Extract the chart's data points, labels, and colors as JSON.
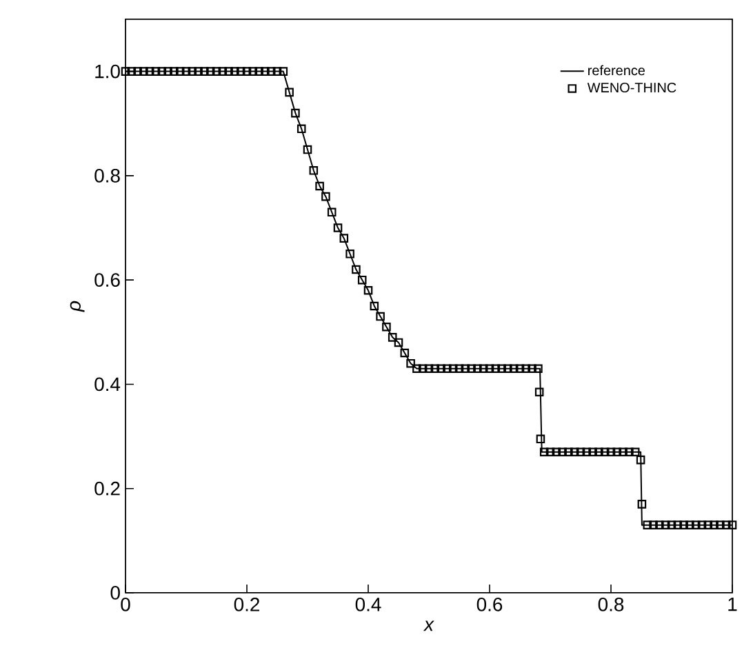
{
  "chart_data": {
    "type": "line",
    "xlabel": "x",
    "ylabel": "ρ",
    "xlim": [
      0,
      1
    ],
    "ylim": [
      0,
      1.1
    ],
    "xticks": [
      0,
      0.2,
      0.4,
      0.6,
      0.8,
      1
    ],
    "yticks": [
      0,
      {
        "value": 0.2,
        "label": "0.2"
      },
      {
        "value": 0.4,
        "label": "0.4"
      },
      {
        "value": 0.6,
        "label": "0.6"
      },
      {
        "value": 0.8,
        "label": "0.8"
      },
      {
        "value": 1,
        "label": "1.0"
      }
    ],
    "grid": false,
    "legend": "top right",
    "series": [
      {
        "name": "reference",
        "color": "#000000",
        "marker": "none",
        "line_style": "solid",
        "x": [
          0,
          0.26,
          0.27,
          0.28,
          0.29,
          0.3,
          0.31,
          0.32,
          0.33,
          0.34,
          0.35,
          0.36,
          0.37,
          0.38,
          0.39,
          0.4,
          0.41,
          0.42,
          0.43,
          0.44,
          0.45,
          0.46,
          0.47,
          0.48,
          0.485,
          0.683,
          0.686,
          0.849,
          0.851,
          1
        ],
        "values": [
          1.0,
          1.0,
          0.96,
          0.92,
          0.89,
          0.85,
          0.81,
          0.78,
          0.76,
          0.73,
          0.7,
          0.68,
          0.65,
          0.62,
          0.6,
          0.58,
          0.55,
          0.53,
          0.51,
          0.49,
          0.48,
          0.46,
          0.44,
          0.43,
          0.43,
          0.43,
          0.27,
          0.27,
          0.13,
          0.13
        ]
      },
      {
        "name": "WENO-THINC",
        "type": "scatter",
        "color": "#000000",
        "marker": "square",
        "x": [
          0,
          0.01,
          0.02,
          0.03,
          0.04,
          0.05,
          0.06,
          0.07,
          0.08,
          0.09,
          0.1,
          0.11,
          0.12,
          0.13,
          0.14,
          0.15,
          0.16,
          0.17,
          0.18,
          0.19,
          0.2,
          0.21,
          0.22,
          0.23,
          0.24,
          0.25,
          0.26,
          0.27,
          0.28,
          0.29,
          0.3,
          0.31,
          0.32,
          0.33,
          0.34,
          0.35,
          0.36,
          0.37,
          0.38,
          0.39,
          0.4,
          0.41,
          0.42,
          0.43,
          0.44,
          0.45,
          0.46,
          0.47,
          0.48,
          0.49,
          0.5,
          0.51,
          0.52,
          0.53,
          0.54,
          0.55,
          0.56,
          0.57,
          0.58,
          0.59,
          0.6,
          0.61,
          0.62,
          0.63,
          0.64,
          0.65,
          0.66,
          0.67,
          0.68,
          0.682,
          0.684,
          0.69,
          0.7,
          0.71,
          0.72,
          0.73,
          0.74,
          0.75,
          0.76,
          0.77,
          0.78,
          0.79,
          0.8,
          0.81,
          0.82,
          0.83,
          0.84,
          0.849,
          0.851,
          0.86,
          0.87,
          0.88,
          0.89,
          0.9,
          0.91,
          0.92,
          0.93,
          0.94,
          0.95,
          0.96,
          0.97,
          0.98,
          0.99,
          1.0
        ],
        "values": [
          1.0,
          1.0,
          1.0,
          1.0,
          1.0,
          1.0,
          1.0,
          1.0,
          1.0,
          1.0,
          1.0,
          1.0,
          1.0,
          1.0,
          1.0,
          1.0,
          1.0,
          1.0,
          1.0,
          1.0,
          1.0,
          1.0,
          1.0,
          1.0,
          1.0,
          1.0,
          1.0,
          0.96,
          0.92,
          0.89,
          0.85,
          0.81,
          0.78,
          0.76,
          0.73,
          0.7,
          0.68,
          0.65,
          0.62,
          0.6,
          0.58,
          0.55,
          0.53,
          0.51,
          0.49,
          0.48,
          0.46,
          0.44,
          0.43,
          0.43,
          0.43,
          0.43,
          0.43,
          0.43,
          0.43,
          0.43,
          0.43,
          0.43,
          0.43,
          0.43,
          0.43,
          0.43,
          0.43,
          0.43,
          0.43,
          0.43,
          0.43,
          0.43,
          0.43,
          0.385,
          0.295,
          0.27,
          0.27,
          0.27,
          0.27,
          0.27,
          0.27,
          0.27,
          0.27,
          0.27,
          0.27,
          0.27,
          0.27,
          0.27,
          0.27,
          0.27,
          0.27,
          0.255,
          0.17,
          0.13,
          0.13,
          0.13,
          0.13,
          0.13,
          0.13,
          0.13,
          0.13,
          0.13,
          0.13,
          0.13,
          0.13,
          0.13,
          0.13,
          0.13
        ]
      }
    ]
  }
}
